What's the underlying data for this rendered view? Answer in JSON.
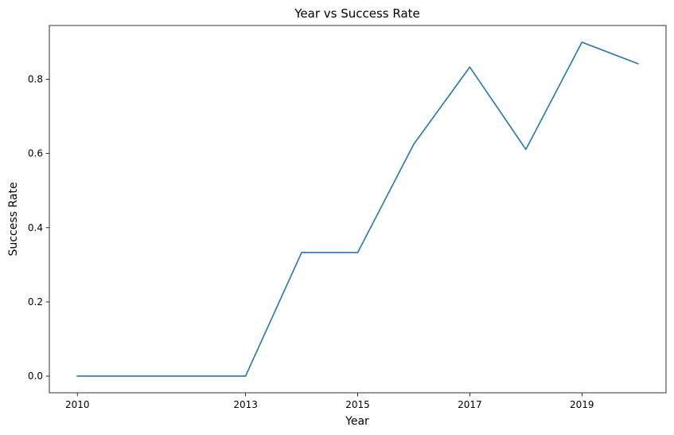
{
  "chart_data": {
    "type": "line",
    "title": "Year vs Success Rate",
    "xlabel": "Year",
    "ylabel": "Success Rate",
    "x": [
      2010,
      2012,
      2013,
      2014,
      2015,
      2016,
      2017,
      2018,
      2019,
      2020
    ],
    "series": [
      {
        "values": [
          0.0,
          0.0,
          0.0,
          0.333,
          0.333,
          0.625,
          0.833,
          0.611,
          0.9,
          0.842
        ],
        "color": "#1f77b4"
      }
    ],
    "xticks": [
      2010,
      2013,
      2015,
      2017,
      2019
    ],
    "xtick_labels": [
      "2010",
      "2013",
      "2015",
      "2017",
      "2019"
    ],
    "yticks": [
      0.0,
      0.2,
      0.4,
      0.6,
      0.8
    ],
    "ytick_labels": [
      "0.0",
      "0.2",
      "0.4",
      "0.6",
      "0.8"
    ],
    "xlim": [
      2009.5,
      2020.5
    ],
    "ylim": [
      -0.045,
      0.945
    ],
    "grid": false
  }
}
